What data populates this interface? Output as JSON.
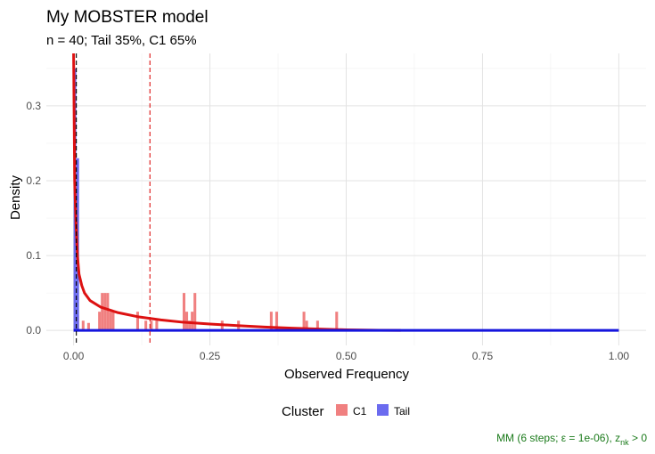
{
  "chart_data": {
    "type": "bar",
    "title": "My MOBSTER model",
    "subtitle": "n = 40; Tail 35%, C1 65%",
    "xlabel": "Observed Frequency",
    "ylabel": "Density",
    "xlim": [
      -0.05,
      1.05
    ],
    "ylim": [
      -0.02,
      0.37
    ],
    "x_ticks": [
      0.0,
      0.25,
      0.5,
      0.75,
      1.0
    ],
    "x_tick_labels": [
      "0.00",
      "0.25",
      "0.50",
      "0.75",
      "1.00"
    ],
    "y_ticks": [
      0.0,
      0.1,
      0.2,
      0.3
    ],
    "y_tick_labels": [
      "0.0",
      "0.1",
      "0.2",
      "0.3"
    ],
    "grid": true,
    "legend": {
      "title": "Cluster",
      "position": "bottom",
      "items": [
        {
          "label": "C1",
          "color": "#F08080"
        },
        {
          "label": "Tail",
          "color": "#6B6BEF"
        }
      ]
    },
    "histogram": {
      "bin_width": 0.005,
      "C1": {
        "color": "#F08080",
        "bins": [
          [
            0.005,
            0.02
          ],
          [
            0.015,
            0.013
          ],
          [
            0.025,
            0.01
          ],
          [
            0.045,
            0.025
          ],
          [
            0.05,
            0.05
          ],
          [
            0.055,
            0.05
          ],
          [
            0.06,
            0.05
          ],
          [
            0.065,
            0.025
          ],
          [
            0.07,
            0.025
          ],
          [
            0.115,
            0.025
          ],
          [
            0.13,
            0.013
          ],
          [
            0.14,
            0.013
          ],
          [
            0.15,
            0.013
          ],
          [
            0.2,
            0.05
          ],
          [
            0.205,
            0.025
          ],
          [
            0.21,
            0.013
          ],
          [
            0.215,
            0.025
          ],
          [
            0.22,
            0.05
          ],
          [
            0.27,
            0.013
          ],
          [
            0.3,
            0.013
          ],
          [
            0.36,
            0.025
          ],
          [
            0.37,
            0.025
          ],
          [
            0.42,
            0.025
          ],
          [
            0.425,
            0.013
          ],
          [
            0.445,
            0.013
          ],
          [
            0.48,
            0.025
          ]
        ]
      },
      "Tail": {
        "color": "#6B6BEF",
        "bins": [
          [
            0.0,
            0.35
          ],
          [
            0.005,
            0.23
          ]
        ]
      }
    },
    "lines": [
      {
        "name": "C1 fit",
        "color": "#DD1111",
        "points": [
          [
            0.0,
            0.37
          ],
          [
            0.002,
            0.2
          ],
          [
            0.004,
            0.15
          ],
          [
            0.007,
            0.1
          ],
          [
            0.01,
            0.075
          ],
          [
            0.015,
            0.06
          ],
          [
            0.02,
            0.05
          ],
          [
            0.03,
            0.04
          ],
          [
            0.05,
            0.031
          ],
          [
            0.08,
            0.024
          ],
          [
            0.12,
            0.018
          ],
          [
            0.16,
            0.014
          ],
          [
            0.2,
            0.011
          ],
          [
            0.25,
            0.0085
          ],
          [
            0.3,
            0.0065
          ],
          [
            0.35,
            0.0045
          ],
          [
            0.4,
            0.003
          ],
          [
            0.45,
            0.0018
          ],
          [
            0.5,
            0.0008
          ],
          [
            0.56,
            0.0002
          ],
          [
            0.6,
            0.0
          ]
        ]
      },
      {
        "name": "Tail fit",
        "color": "#1515DD",
        "points": [
          [
            0.0,
            0.0
          ],
          [
            1.0,
            0.0
          ]
        ]
      }
    ],
    "vlines": [
      {
        "x": 0.005,
        "color": "#000000",
        "style": "dashed"
      },
      {
        "x": 0.14,
        "color": "#DD1111",
        "style": "dashed"
      }
    ],
    "caption": {
      "prefix": "MM (6 steps; ε = 1e-06), z",
      "subscript": "nk",
      "suffix": " > 0"
    }
  }
}
